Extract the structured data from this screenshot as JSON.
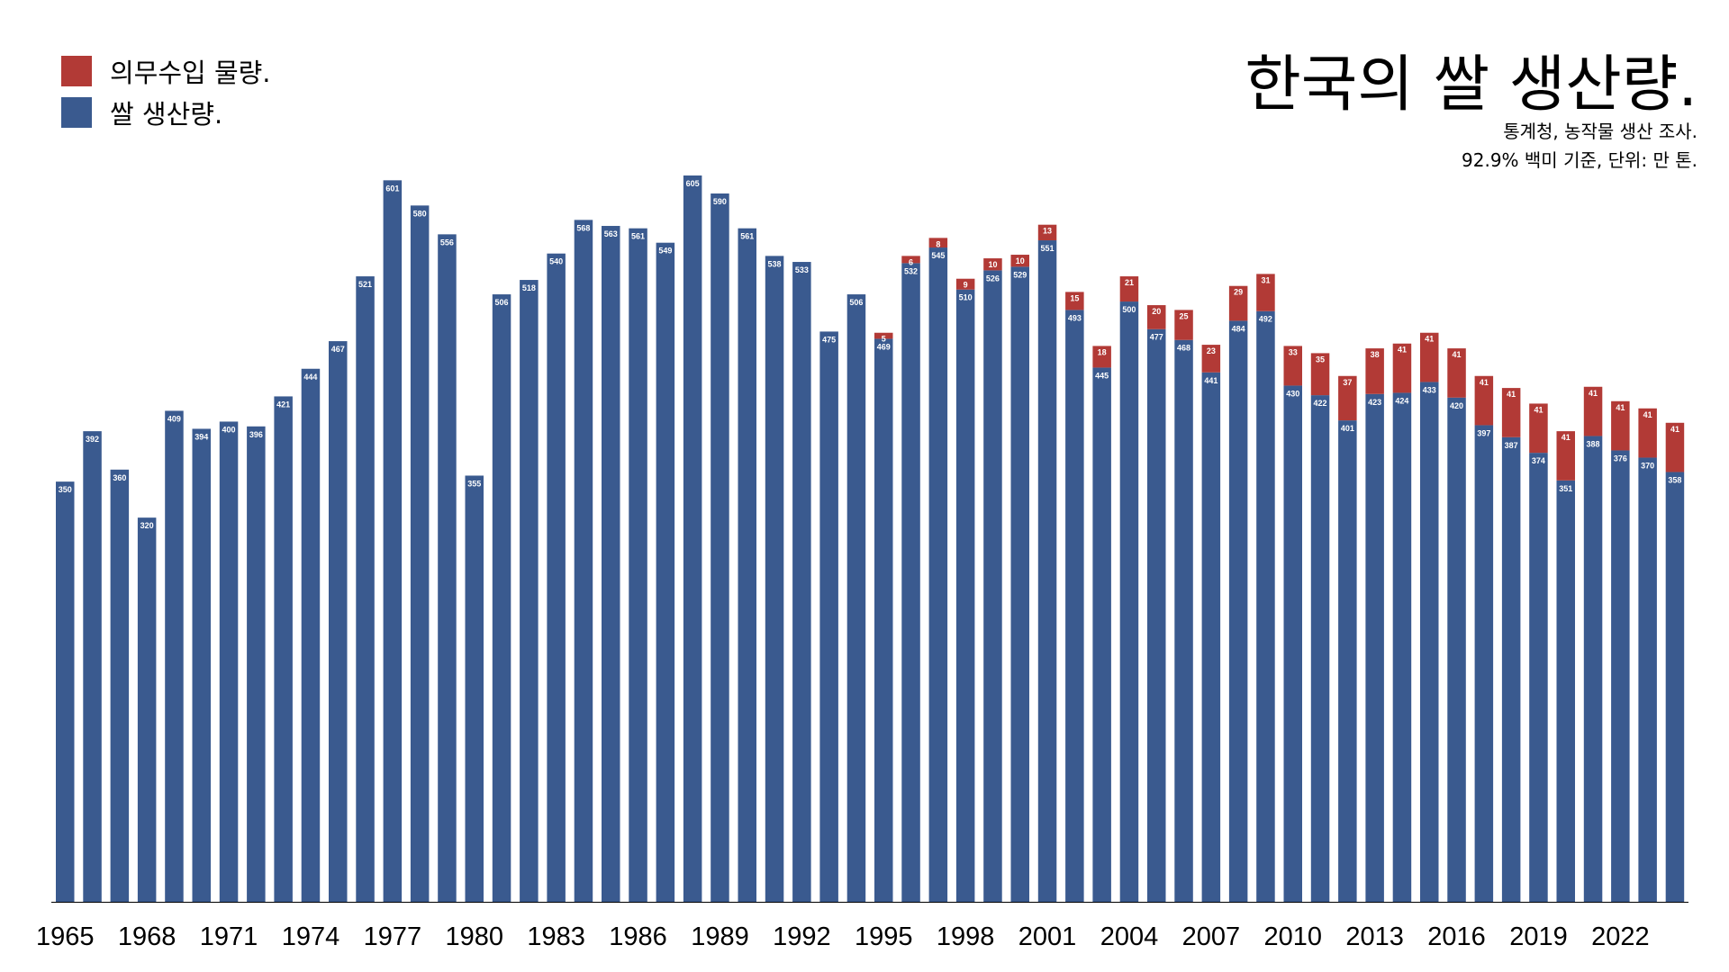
{
  "title": "한국의 쌀 생산량.",
  "subtitle": [
    "통계청, 농작물 생산 조사.",
    "92.9% 백미 기준, 단위: 만 톤."
  ],
  "legend": [
    {
      "label": "의무수입 물량.",
      "color": "#b23a36"
    },
    {
      "label": "쌀 생산량.",
      "color": "#3a5a8f"
    }
  ],
  "chart_data": {
    "type": "bar",
    "stacked": true,
    "categories": [
      "1965",
      "1966",
      "1967",
      "1968",
      "1969",
      "1970",
      "1971",
      "1972",
      "1973",
      "1974",
      "1975",
      "1976",
      "1977",
      "1978",
      "1979",
      "1980",
      "1981",
      "1982",
      "1983",
      "1984",
      "1985",
      "1986",
      "1987",
      "1988",
      "1989",
      "1990",
      "1991",
      "1992",
      "1993",
      "1994",
      "1995",
      "1996",
      "1997",
      "1998",
      "1999",
      "2000",
      "2001",
      "2002",
      "2003",
      "2004",
      "2005",
      "2006",
      "2007",
      "2008",
      "2009",
      "2010",
      "2011",
      "2012",
      "2013",
      "2014",
      "2015",
      "2016",
      "2017",
      "2018",
      "2019",
      "2020",
      "2021",
      "2022",
      "2023",
      "2024"
    ],
    "x_tick_labels": [
      "1965",
      "1968",
      "1971",
      "1974",
      "1977",
      "1980",
      "1983",
      "1986",
      "1989",
      "1992",
      "1995",
      "1998",
      "2001",
      "2004",
      "2007",
      "2010",
      "2013",
      "2016",
      "2019",
      "2022"
    ],
    "series": [
      {
        "name": "쌀 생산량.",
        "color": "#3a5a8f",
        "values": [
          350,
          392,
          360,
          320,
          409,
          394,
          400,
          396,
          421,
          444,
          467,
          521,
          601,
          580,
          556,
          355,
          506,
          518,
          540,
          568,
          563,
          561,
          549,
          605,
          590,
          561,
          538,
          533,
          475,
          506,
          469,
          532,
          545,
          510,
          526,
          529,
          551,
          493,
          445,
          500,
          477,
          468,
          441,
          484,
          492,
          430,
          422,
          401,
          423,
          424,
          433,
          420,
          397,
          387,
          374,
          351,
          388,
          376,
          370,
          358
        ]
      },
      {
        "name": "의무수입 물량.",
        "color": "#b23a36",
        "values": [
          0,
          0,
          0,
          0,
          0,
          0,
          0,
          0,
          0,
          0,
          0,
          0,
          0,
          0,
          0,
          0,
          0,
          0,
          0,
          0,
          0,
          0,
          0,
          0,
          0,
          0,
          0,
          0,
          0,
          0,
          5,
          6,
          8,
          9,
          10,
          10,
          13,
          15,
          18,
          21,
          20,
          25,
          23,
          29,
          31,
          33,
          35,
          37,
          38,
          41,
          41,
          41,
          41,
          41,
          41,
          41,
          41,
          41,
          41,
          41
        ]
      }
    ],
    "ylim": [
      0,
      650
    ],
    "grid": false,
    "legend_position": "top-left"
  }
}
